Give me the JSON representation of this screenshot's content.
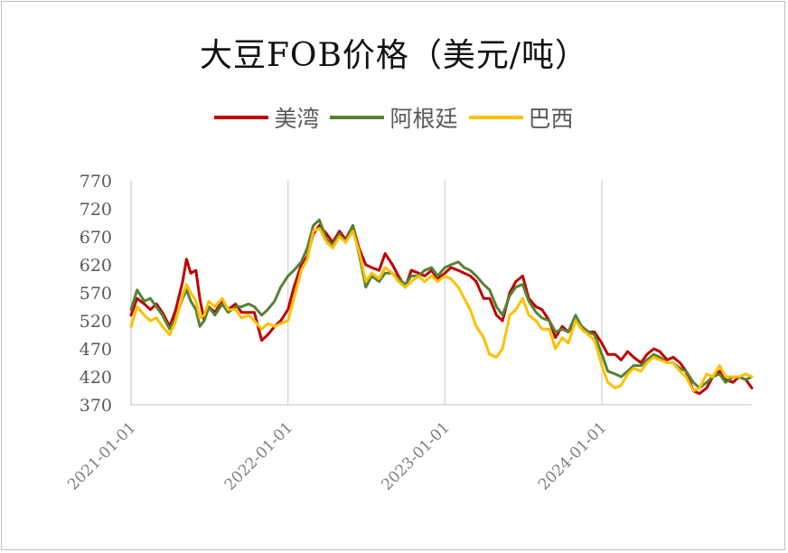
{
  "chart_data": {
    "type": "line",
    "title": "大豆FOB价格（美元/吨）",
    "xlabel": "",
    "ylabel": "",
    "ylim": [
      370,
      770
    ],
    "yticks": [
      370,
      420,
      470,
      520,
      570,
      620,
      670,
      720,
      770
    ],
    "xticks": [
      "2021-01-01",
      "2022-01-01",
      "2023-01-01",
      "2024-01-01"
    ],
    "xlim": [
      "2021-01-01",
      "2024-12-15"
    ],
    "legend_position": "top-center",
    "grid": "vertical",
    "colors": {
      "美湾": "#c00000",
      "阿根廷": "#548235",
      "巴西": "#ffc000"
    },
    "series": [
      {
        "name": "美湾",
        "x": [
          "2021-01-01",
          "2021-01-15",
          "2021-02-01",
          "2021-02-15",
          "2021-03-01",
          "2021-03-15",
          "2021-04-01",
          "2021-04-15",
          "2021-05-01",
          "2021-05-10",
          "2021-05-20",
          "2021-06-01",
          "2021-06-10",
          "2021-06-20",
          "2021-07-01",
          "2021-07-15",
          "2021-08-01",
          "2021-08-15",
          "2021-09-01",
          "2021-09-15",
          "2021-10-01",
          "2021-10-15",
          "2021-11-01",
          "2021-11-15",
          "2021-12-01",
          "2021-12-15",
          "2022-01-01",
          "2022-01-15",
          "2022-02-01",
          "2022-02-15",
          "2022-03-01",
          "2022-03-15",
          "2022-04-01",
          "2022-04-15",
          "2022-05-01",
          "2022-05-15",
          "2022-06-01",
          "2022-06-15",
          "2022-07-01",
          "2022-07-15",
          "2022-08-01",
          "2022-08-15",
          "2022-09-01",
          "2022-09-15",
          "2022-10-01",
          "2022-10-15",
          "2022-11-01",
          "2022-11-15",
          "2022-12-01",
          "2022-12-15",
          "2023-01-01",
          "2023-01-15",
          "2023-02-01",
          "2023-02-15",
          "2023-03-01",
          "2023-03-15",
          "2023-04-01",
          "2023-04-15",
          "2023-05-01",
          "2023-05-15",
          "2023-06-01",
          "2023-06-15",
          "2023-07-01",
          "2023-07-15",
          "2023-08-01",
          "2023-08-15",
          "2023-09-01",
          "2023-09-15",
          "2023-10-01",
          "2023-10-15",
          "2023-11-01",
          "2023-11-15",
          "2023-12-01",
          "2023-12-15",
          "2024-01-01",
          "2024-01-15",
          "2024-02-01",
          "2024-02-15",
          "2024-03-01",
          "2024-03-15",
          "2024-04-01",
          "2024-04-15",
          "2024-05-01",
          "2024-05-15",
          "2024-06-01",
          "2024-06-15",
          "2024-07-01",
          "2024-07-15",
          "2024-08-01",
          "2024-08-15",
          "2024-09-01",
          "2024-09-15",
          "2024-10-01",
          "2024-10-15",
          "2024-11-01",
          "2024-11-15",
          "2024-12-01",
          "2024-12-15"
        ],
        "values": [
          530,
          560,
          550,
          540,
          550,
          535,
          510,
          540,
          590,
          630,
          605,
          610,
          560,
          520,
          545,
          535,
          555,
          540,
          550,
          535,
          535,
          535,
          485,
          495,
          510,
          520,
          540,
          580,
          620,
          635,
          675,
          690,
          675,
          660,
          680,
          665,
          690,
          650,
          620,
          615,
          610,
          640,
          620,
          600,
          580,
          610,
          605,
          600,
          610,
          595,
          605,
          615,
          610,
          605,
          600,
          590,
          560,
          560,
          530,
          520,
          570,
          590,
          600,
          560,
          545,
          540,
          520,
          490,
          510,
          500,
          520,
          510,
          500,
          500,
          480,
          460,
          460,
          450,
          465,
          455,
          445,
          460,
          470,
          465,
          450,
          455,
          445,
          430,
          395,
          390,
          400,
          420,
          430,
          415,
          410,
          420,
          415,
          400
        ]
      },
      {
        "name": "阿根廷",
        "x": [
          "2021-01-01",
          "2021-01-15",
          "2021-02-01",
          "2021-02-15",
          "2021-03-01",
          "2021-03-15",
          "2021-04-01",
          "2021-04-15",
          "2021-05-01",
          "2021-05-10",
          "2021-05-20",
          "2021-06-01",
          "2021-06-10",
          "2021-06-20",
          "2021-07-01",
          "2021-07-15",
          "2021-08-01",
          "2021-08-15",
          "2021-09-01",
          "2021-09-15",
          "2021-10-01",
          "2021-10-15",
          "2021-11-01",
          "2021-11-15",
          "2021-12-01",
          "2021-12-15",
          "2022-01-01",
          "2022-01-15",
          "2022-02-01",
          "2022-02-15",
          "2022-03-01",
          "2022-03-15",
          "2022-04-01",
          "2022-04-15",
          "2022-05-01",
          "2022-05-15",
          "2022-06-01",
          "2022-06-15",
          "2022-07-01",
          "2022-07-15",
          "2022-08-01",
          "2022-08-15",
          "2022-09-01",
          "2022-09-15",
          "2022-10-01",
          "2022-10-15",
          "2022-11-01",
          "2022-11-15",
          "2022-12-01",
          "2022-12-15",
          "2023-01-01",
          "2023-01-15",
          "2023-02-01",
          "2023-02-15",
          "2023-03-01",
          "2023-03-15",
          "2023-04-01",
          "2023-04-15",
          "2023-05-01",
          "2023-05-15",
          "2023-06-01",
          "2023-06-15",
          "2023-07-01",
          "2023-07-15",
          "2023-08-01",
          "2023-08-15",
          "2023-09-01",
          "2023-09-15",
          "2023-10-01",
          "2023-10-15",
          "2023-11-01",
          "2023-11-15",
          "2023-12-01",
          "2023-12-15",
          "2024-01-01",
          "2024-01-15",
          "2024-02-01",
          "2024-02-15",
          "2024-03-01",
          "2024-03-15",
          "2024-04-01",
          "2024-04-15",
          "2024-05-01",
          "2024-05-15",
          "2024-06-01",
          "2024-06-15",
          "2024-07-01",
          "2024-07-15",
          "2024-08-01",
          "2024-08-15",
          "2024-09-01",
          "2024-09-15",
          "2024-10-01",
          "2024-10-15",
          "2024-11-01",
          "2024-11-15",
          "2024-12-01",
          "2024-12-15"
        ],
        "values": [
          540,
          575,
          555,
          560,
          545,
          530,
          505,
          525,
          560,
          575,
          555,
          540,
          510,
          520,
          545,
          530,
          550,
          535,
          545,
          545,
          550,
          545,
          530,
          540,
          555,
          580,
          600,
          610,
          625,
          650,
          690,
          700,
          665,
          655,
          675,
          660,
          690,
          640,
          580,
          600,
          590,
          605,
          605,
          595,
          585,
          600,
          600,
          610,
          615,
          600,
          615,
          620,
          625,
          615,
          610,
          600,
          585,
          575,
          545,
          530,
          565,
          580,
          585,
          555,
          535,
          525,
          520,
          500,
          505,
          500,
          530,
          510,
          500,
          495,
          460,
          430,
          425,
          420,
          430,
          440,
          440,
          450,
          460,
          455,
          445,
          445,
          435,
          430,
          410,
          400,
          410,
          420,
          425,
          410,
          420,
          420,
          415,
          420
        ]
      },
      {
        "name": "巴西",
        "x": [
          "2021-01-01",
          "2021-01-15",
          "2021-02-01",
          "2021-02-15",
          "2021-03-01",
          "2021-03-15",
          "2021-04-01",
          "2021-04-15",
          "2021-05-01",
          "2021-05-10",
          "2021-05-20",
          "2021-06-01",
          "2021-06-10",
          "2021-06-20",
          "2021-07-01",
          "2021-07-15",
          "2021-08-01",
          "2021-08-15",
          "2021-09-01",
          "2021-09-15",
          "2021-10-01",
          "2021-10-15",
          "2021-11-01",
          "2021-11-15",
          "2021-12-01",
          "2021-12-15",
          "2022-01-01",
          "2022-01-15",
          "2022-02-01",
          "2022-02-15",
          "2022-03-01",
          "2022-03-15",
          "2022-04-01",
          "2022-04-15",
          "2022-05-01",
          "2022-05-15",
          "2022-06-01",
          "2022-06-15",
          "2022-07-01",
          "2022-07-15",
          "2022-08-01",
          "2022-08-15",
          "2022-09-01",
          "2022-09-15",
          "2022-10-01",
          "2022-10-15",
          "2022-11-01",
          "2022-11-15",
          "2022-12-01",
          "2022-12-15",
          "2023-01-01",
          "2023-01-15",
          "2023-02-01",
          "2023-02-15",
          "2023-03-01",
          "2023-03-15",
          "2023-04-01",
          "2023-04-15",
          "2023-05-01",
          "2023-05-15",
          "2023-06-01",
          "2023-06-15",
          "2023-07-01",
          "2023-07-15",
          "2023-08-01",
          "2023-08-15",
          "2023-09-01",
          "2023-09-15",
          "2023-10-01",
          "2023-10-15",
          "2023-11-01",
          "2023-11-15",
          "2023-12-01",
          "2023-12-15",
          "2024-01-01",
          "2024-01-15",
          "2024-02-01",
          "2024-02-15",
          "2024-03-01",
          "2024-03-15",
          "2024-04-01",
          "2024-04-15",
          "2024-05-01",
          "2024-05-15",
          "2024-06-01",
          "2024-06-15",
          "2024-07-01",
          "2024-07-15",
          "2024-08-01",
          "2024-08-15",
          "2024-09-01",
          "2024-09-15",
          "2024-10-01",
          "2024-10-15",
          "2024-11-01",
          "2024-11-15",
          "2024-12-01",
          "2024-12-15"
        ],
        "values": [
          510,
          545,
          530,
          520,
          525,
          510,
          495,
          520,
          565,
          585,
          570,
          555,
          525,
          530,
          555,
          545,
          560,
          540,
          540,
          525,
          530,
          520,
          505,
          515,
          510,
          515,
          520,
          560,
          610,
          630,
          680,
          685,
          660,
          650,
          670,
          660,
          680,
          645,
          590,
          605,
          595,
          615,
          605,
          590,
          580,
          590,
          600,
          590,
          600,
          590,
          600,
          595,
          580,
          560,
          540,
          510,
          490,
          460,
          455,
          470,
          530,
          540,
          560,
          530,
          520,
          505,
          505,
          470,
          490,
          480,
          520,
          505,
          495,
          485,
          440,
          410,
          400,
          405,
          425,
          435,
          430,
          445,
          455,
          450,
          445,
          445,
          430,
          420,
          395,
          400,
          425,
          420,
          440,
          420,
          420,
          420,
          425,
          420
        ]
      }
    ]
  }
}
